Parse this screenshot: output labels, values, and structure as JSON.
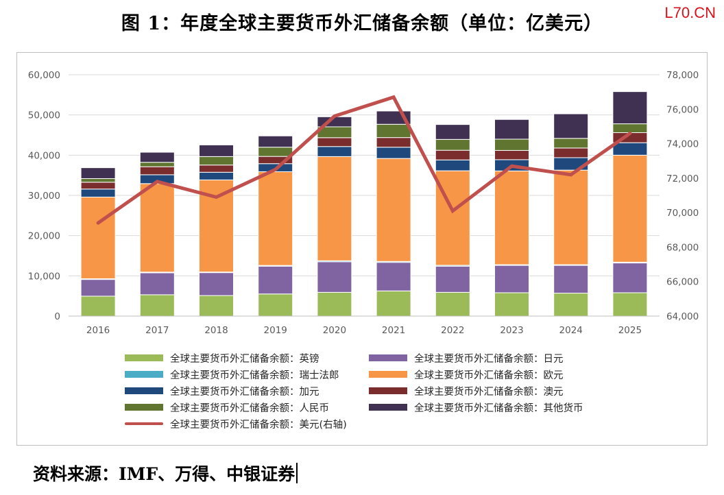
{
  "title": "图 1：年度全球主要货币外汇储备余额（单位：亿美元）",
  "watermark": "L70.CN",
  "source": "资料来源：IMF、万得、中银证券",
  "chart_data": {
    "type": "bar",
    "stacked": true,
    "categories": [
      "2016",
      "2017",
      "2018",
      "2019",
      "2020",
      "2021",
      "2022",
      "2023",
      "2024",
      "2025"
    ],
    "ylim": [
      0,
      60000
    ],
    "yticks": [
      "0",
      "10,000",
      "20,000",
      "30,000",
      "40,000",
      "50,000",
      "60,000"
    ],
    "y2lim": [
      64000,
      78000
    ],
    "y2ticks": [
      "64,000",
      "66,000",
      "68,000",
      "70,000",
      "72,000",
      "74,000",
      "76,000",
      "78,000"
    ],
    "series": [
      {
        "name": "全球主要货币外汇储备余额：英镑",
        "color": "#9bbb59",
        "values": [
          4950,
          5300,
          5100,
          5500,
          5900,
          6250,
          5900,
          5800,
          5700,
          5800
        ]
      },
      {
        "name": "全球主要货币外汇储备余额：日元",
        "color": "#8064a2",
        "values": [
          4150,
          5450,
          5700,
          6900,
          7600,
          7100,
          6500,
          6800,
          6900,
          7400
        ]
      },
      {
        "name": "全球主要货币外汇储备余额：瑞士法郎",
        "color": "#4bacc6",
        "values": [
          180,
          180,
          150,
          190,
          250,
          230,
          220,
          180,
          180,
          200
        ]
      },
      {
        "name": "全球主要货币外汇储备余额：欧元",
        "color": "#f79646",
        "values": [
          20300,
          22000,
          22900,
          23300,
          25900,
          25600,
          23500,
          23300,
          23500,
          26600
        ]
      },
      {
        "name": "全球主要货币外汇储备余额：加元",
        "color": "#1f497d",
        "values": [
          2000,
          2200,
          1900,
          2000,
          2500,
          2800,
          2700,
          2800,
          3100,
          3100
        ]
      },
      {
        "name": "全球主要货币外汇储备余额：澳元",
        "color": "#7b2c2c",
        "values": [
          1700,
          2000,
          1800,
          1800,
          2200,
          2400,
          2400,
          2300,
          2400,
          2500
        ]
      },
      {
        "name": "全球主要货币外汇储备余额：人民币",
        "color": "#5f7530",
        "values": [
          900,
          1100,
          2100,
          2300,
          2700,
          3300,
          2700,
          2800,
          2400,
          2200
        ]
      },
      {
        "name": "全球主要货币外汇储备余额：其他货币",
        "color": "#403152",
        "values": [
          2700,
          2500,
          2900,
          2800,
          2500,
          3300,
          3700,
          4900,
          6100,
          8000
        ]
      }
    ],
    "line": {
      "name": "全球主要货币外汇储备余额：美元(右轴)",
      "axis": "right",
      "color": "#c0504d",
      "values": [
        69400,
        71800,
        70900,
        72500,
        75600,
        76700,
        70100,
        72700,
        72200,
        74600
      ]
    },
    "legend_position": "bottom",
    "grid": true
  }
}
